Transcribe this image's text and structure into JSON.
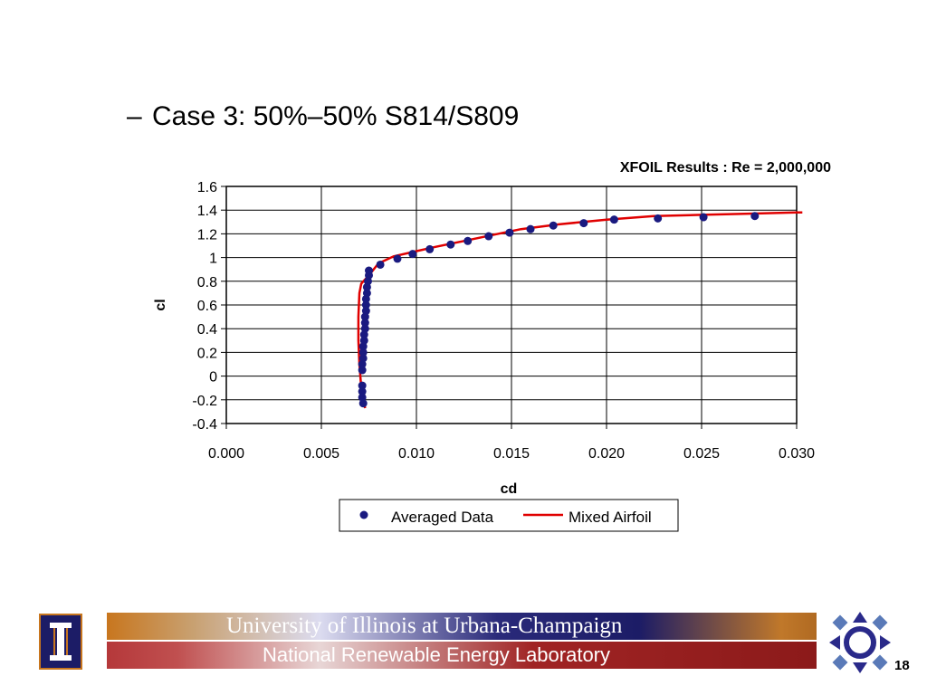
{
  "slide": {
    "bullet_dash": "–",
    "bullet_text": "Case 3: 50%–50% S814/S809",
    "page_number": "18"
  },
  "banner": {
    "university": "University of Illinois at Urbana-Champaign",
    "lab": "National Renewable Energy Laboratory"
  },
  "logos": {
    "left": "illinois-block-i-icon",
    "right": "nrel-crest-icon"
  },
  "chart_data": {
    "type": "scatter",
    "title": "XFOIL Results : Re = 2,000,000",
    "xlabel": "cd",
    "ylabel": "cl",
    "xlim": [
      0.0,
      0.03
    ],
    "ylim": [
      -0.4,
      1.6
    ],
    "x_ticks": [
      "0.000",
      "0.005",
      "0.010",
      "0.015",
      "0.020",
      "0.025",
      "0.030"
    ],
    "y_ticks": [
      "1.6",
      "1.4",
      "1.2",
      "1",
      "0.8",
      "0.6",
      "0.4",
      "0.2",
      "0",
      "-0.2",
      "-0.4"
    ],
    "grid": true,
    "legend_position": "bottom",
    "series": [
      {
        "name": "Averaged Data",
        "kind": "points",
        "color": "#1a1a80",
        "points": [
          [
            0.0072,
            -0.23
          ],
          [
            0.00715,
            -0.18
          ],
          [
            0.00715,
            -0.13
          ],
          [
            0.00715,
            -0.08
          ],
          [
            0.00715,
            0.05
          ],
          [
            0.00715,
            0.1
          ],
          [
            0.0072,
            0.15
          ],
          [
            0.0072,
            0.2
          ],
          [
            0.0072,
            0.25
          ],
          [
            0.00725,
            0.3
          ],
          [
            0.00725,
            0.35
          ],
          [
            0.0073,
            0.4
          ],
          [
            0.0073,
            0.45
          ],
          [
            0.0073,
            0.5
          ],
          [
            0.00735,
            0.55
          ],
          [
            0.00735,
            0.6
          ],
          [
            0.00735,
            0.65
          ],
          [
            0.0074,
            0.7
          ],
          [
            0.0074,
            0.75
          ],
          [
            0.00745,
            0.8
          ],
          [
            0.0075,
            0.85
          ],
          [
            0.0075,
            0.89
          ],
          [
            0.0081,
            0.94
          ],
          [
            0.009,
            0.99
          ],
          [
            0.0098,
            1.03
          ],
          [
            0.0107,
            1.07
          ],
          [
            0.0118,
            1.11
          ],
          [
            0.0127,
            1.14
          ],
          [
            0.0138,
            1.18
          ],
          [
            0.0149,
            1.21
          ],
          [
            0.016,
            1.24
          ],
          [
            0.0172,
            1.27
          ],
          [
            0.0188,
            1.29
          ],
          [
            0.0204,
            1.32
          ],
          [
            0.0227,
            1.33
          ],
          [
            0.0251,
            1.34
          ],
          [
            0.0278,
            1.35
          ]
        ]
      },
      {
        "name": "Mixed Airfoil",
        "kind": "line",
        "color": "#e00000",
        "points": [
          [
            0.0073,
            -0.27
          ],
          [
            0.0071,
            -0.1
          ],
          [
            0.007,
            0.1
          ],
          [
            0.00695,
            0.3
          ],
          [
            0.00695,
            0.5
          ],
          [
            0.007,
            0.7
          ],
          [
            0.0071,
            0.78
          ],
          [
            0.0075,
            0.85
          ],
          [
            0.008,
            0.95
          ],
          [
            0.0088,
            1.01
          ],
          [
            0.0099,
            1.05
          ],
          [
            0.011,
            1.09
          ],
          [
            0.0125,
            1.14
          ],
          [
            0.014,
            1.19
          ],
          [
            0.0155,
            1.24
          ],
          [
            0.0175,
            1.28
          ],
          [
            0.02,
            1.32
          ],
          [
            0.0225,
            1.35
          ],
          [
            0.025,
            1.36
          ],
          [
            0.0275,
            1.37
          ],
          [
            0.03,
            1.38
          ],
          [
            0.0303,
            1.38
          ]
        ]
      }
    ]
  }
}
